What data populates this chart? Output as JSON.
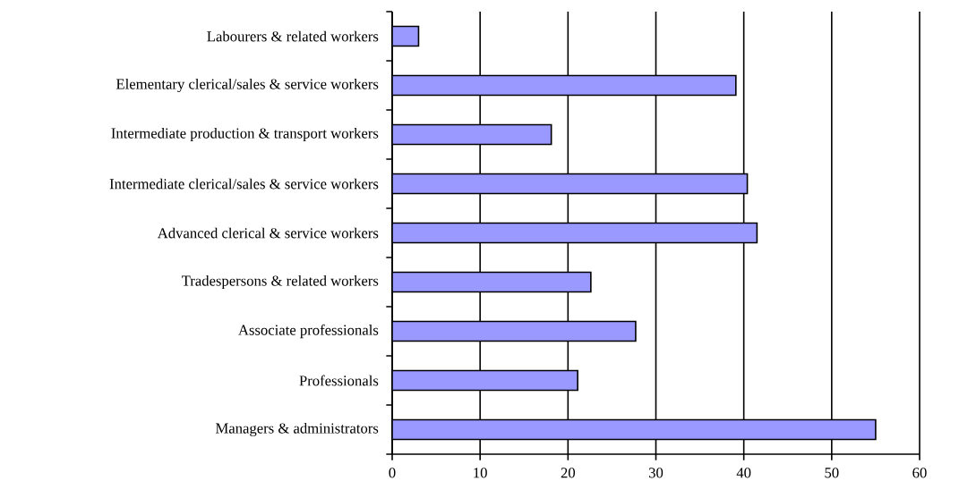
{
  "chart_data": {
    "type": "bar",
    "orientation": "horizontal",
    "categories": [
      "Labourers & related workers",
      "Elementary clerical/sales & service workers",
      "Intermediate production & transport workers",
      "Intermediate clerical/sales & service workers",
      "Advanced clerical & service workers",
      "Tradespersons & related workers",
      "Associate professionals",
      "Professionals",
      "Managers & administrators"
    ],
    "values": [
      3.0,
      39.1,
      18.1,
      40.4,
      41.5,
      22.6,
      27.7,
      21.1,
      55.0
    ],
    "color": "#9999ff",
    "xlim": [
      0,
      60
    ],
    "xticks": [
      0,
      10,
      20,
      30,
      40,
      50,
      60
    ],
    "grid": "x"
  }
}
